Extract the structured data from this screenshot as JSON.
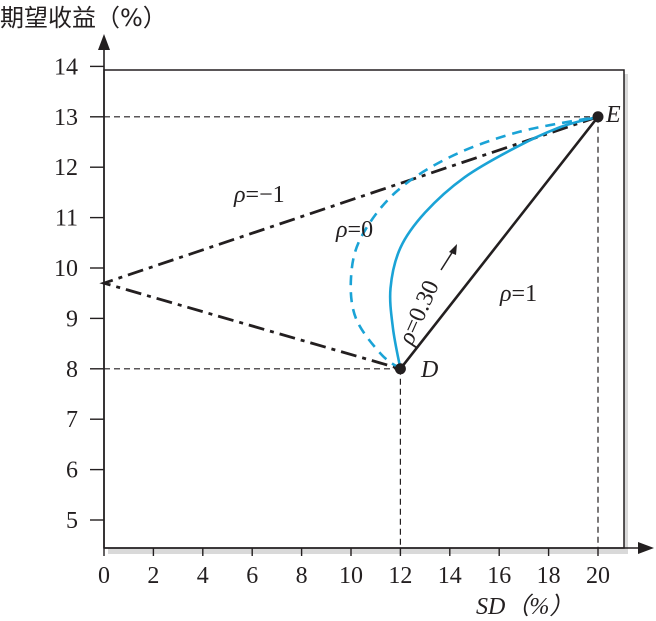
{
  "chart_data": {
    "type": "line",
    "title": "",
    "ylabel": "期望收益（%）",
    "xlabel": "SD（%）",
    "xlim": [
      0,
      21
    ],
    "ylim": [
      4.5,
      14
    ],
    "x_ticks": [
      "0",
      "2",
      "4",
      "6",
      "8",
      "10",
      "12",
      "14",
      "16",
      "18",
      "20"
    ],
    "y_ticks": [
      "5",
      "6",
      "7",
      "8",
      "9",
      "10",
      "11",
      "12",
      "13",
      "14"
    ],
    "points": [
      {
        "name": "D",
        "x": 12,
        "y": 8
      },
      {
        "name": "E",
        "x": 20,
        "y": 13
      }
    ],
    "series": [
      {
        "name": "ρ=1",
        "style": "solid",
        "color": "#231f20",
        "x": [
          12,
          20
        ],
        "y": [
          8,
          13
        ]
      },
      {
        "name": "ρ=−1",
        "style": "dash-dot",
        "color": "#231f20",
        "x": [
          20,
          0,
          12
        ],
        "y": [
          13,
          9.7,
          8
        ]
      },
      {
        "name": "ρ=0",
        "style": "dashed",
        "color": "#1aa3d6",
        "x": [
          12,
          11.2,
          10.2,
          10.0,
          10.4,
          11.8,
          14.0,
          16.8,
          20
        ],
        "y": [
          8,
          8.3,
          9.0,
          9.8,
          10.6,
          11.5,
          12.2,
          12.7,
          13
        ]
      },
      {
        "name": "ρ=0.30",
        "style": "solid",
        "color": "#1aa3d6",
        "x": [
          12,
          11.7,
          11.6,
          12.0,
          13.0,
          14.6,
          16.7,
          18.5,
          20
        ],
        "y": [
          8,
          8.8,
          9.6,
          10.4,
          11.1,
          11.8,
          12.4,
          12.8,
          13
        ]
      }
    ],
    "labels": {
      "rho_neg1": {
        "prefix": "ρ",
        "text": "=−1"
      },
      "rho_0": {
        "prefix": "ρ",
        "text": "=0"
      },
      "rho_030": {
        "prefix": "ρ",
        "text": "=0.30"
      },
      "rho_1": {
        "prefix": "ρ",
        "text": "=1"
      },
      "point_d": "D",
      "point_e": "E"
    },
    "guide_lines": "dashed",
    "grid": false
  }
}
